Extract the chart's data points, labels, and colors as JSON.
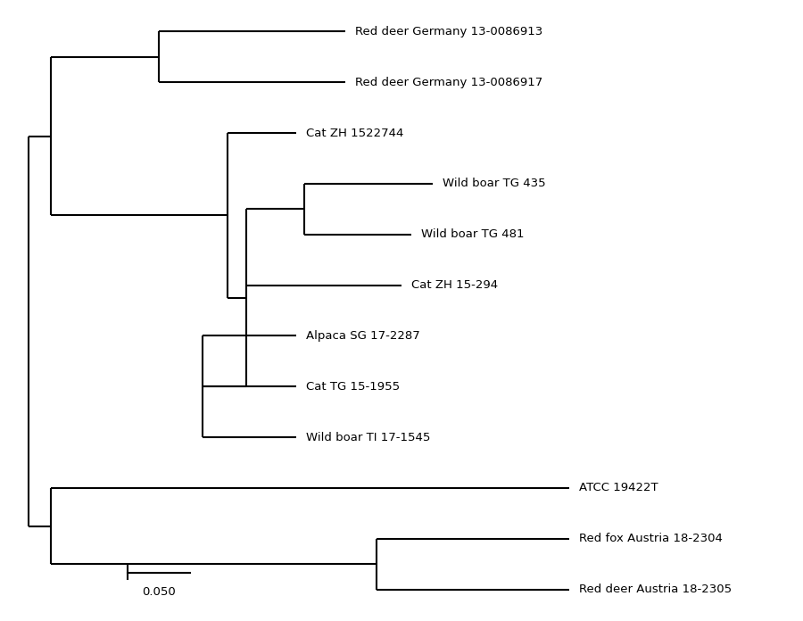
{
  "taxa": [
    "Red deer Germany 13-0086913",
    "Red deer Germany 13-0086917",
    "Cat ZH 1522744",
    "Wild boar TG 435",
    "Wild boar TG 481",
    "Cat ZH 15-294",
    "Alpaca SG 17-2287",
    "Cat TG 15-1955",
    "Wild boar TI 17-1545",
    "ATCC 19422T",
    "Red fox Austria 18-2304",
    "Red deer Austria 18-2305"
  ],
  "background_color": "#ffffff",
  "line_color": "#000000",
  "text_color": "#000000",
  "font_size": 9.5,
  "scale_bar_value": 0.05,
  "scale_bar_label": "0.050"
}
